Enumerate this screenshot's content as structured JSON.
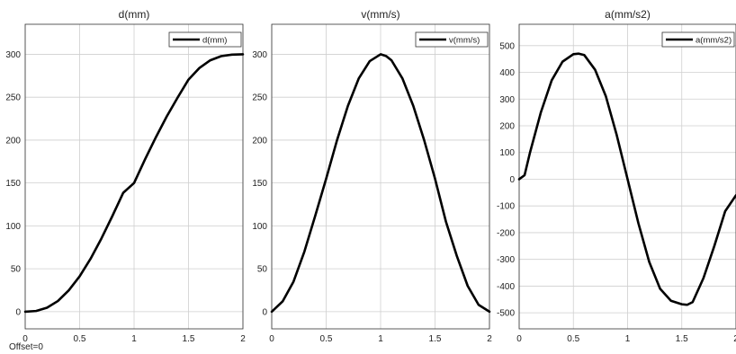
{
  "footer": {
    "offset_text": "Offset=0"
  },
  "colors": {
    "line": "#000000",
    "grid": "#cfcfcf",
    "axis": "#333333",
    "text": "#222222"
  },
  "chart_data": [
    {
      "type": "line",
      "title": "d(mm)",
      "legend": {
        "entry": "d(mm)",
        "placement": "top-right"
      },
      "grid": true,
      "xlim": [
        0,
        2
      ],
      "ylim": [
        -20,
        335
      ],
      "xticks": [
        0,
        0.5,
        1,
        1.5,
        2
      ],
      "xtick_labels": [
        "0",
        "0.5",
        "1",
        "1.5",
        "2"
      ],
      "yticks": [
        0,
        50,
        100,
        150,
        200,
        250,
        300
      ],
      "ytick_labels": [
        "0",
        "50",
        "100",
        "150",
        "200",
        "250",
        "300"
      ],
      "series": [
        {
          "name": "d(mm)",
          "x": [
            0,
            0.1,
            0.2,
            0.3,
            0.4,
            0.5,
            0.6,
            0.7,
            0.8,
            0.9,
            1.0,
            1.1,
            1.2,
            1.3,
            1.4,
            1.5,
            1.6,
            1.7,
            1.8,
            1.9,
            2.0
          ],
          "y": [
            0,
            0.8,
            4.6,
            12.4,
            24.8,
            41.2,
            61.6,
            85.3,
            111.3,
            138.5,
            150,
            177.3,
            203.2,
            227.5,
            249.5,
            270.5,
            284,
            293,
            297.8,
            299.6,
            300
          ]
        }
      ]
    },
    {
      "type": "line",
      "title": "v(mm/s)",
      "legend": {
        "entry": "v(mm/s)",
        "placement": "top-right"
      },
      "grid": true,
      "xlim": [
        0,
        2
      ],
      "ylim": [
        -20,
        335
      ],
      "xticks": [
        0,
        0.5,
        1,
        1.5,
        2
      ],
      "xtick_labels": [
        "0",
        "0.5",
        "1",
        "1.5",
        "2"
      ],
      "yticks": [
        0,
        50,
        100,
        150,
        200,
        250,
        300
      ],
      "ytick_labels": [
        "0",
        "50",
        "100",
        "150",
        "200",
        "250",
        "300"
      ],
      "series": [
        {
          "name": "v(mm/s)",
          "x": [
            0,
            0.1,
            0.2,
            0.3,
            0.4,
            0.5,
            0.6,
            0.7,
            0.8,
            0.9,
            1.0,
            1.05,
            1.1,
            1.2,
            1.3,
            1.4,
            1.5,
            1.6,
            1.7,
            1.8,
            1.9,
            2.0
          ],
          "y": [
            0,
            12,
            35,
            70,
            112,
            155,
            200,
            240,
            272,
            292,
            300,
            298,
            293,
            272,
            240,
            200,
            155,
            105,
            65,
            30,
            8,
            0
          ]
        }
      ]
    },
    {
      "type": "line",
      "title": "a(mm/s2)",
      "legend": {
        "entry": "a(mm/s2)",
        "placement": "top-right"
      },
      "grid": true,
      "xlim": [
        0,
        2
      ],
      "ylim": [
        -560,
        580
      ],
      "xticks": [
        0,
        0.5,
        1,
        1.5,
        2
      ],
      "xtick_labels": [
        "0",
        "0.5",
        "1",
        "1.5",
        "2"
      ],
      "yticks": [
        -500,
        -400,
        -300,
        -200,
        -100,
        0,
        100,
        200,
        300,
        400,
        500
      ],
      "ytick_labels": [
        "-500",
        "-400",
        "-300",
        "-200",
        "-100",
        "0",
        "100",
        "200",
        "300",
        "400",
        "500"
      ],
      "series": [
        {
          "name": "a(mm/s2)",
          "x": [
            0,
            0.05,
            0.1,
            0.2,
            0.3,
            0.4,
            0.5,
            0.55,
            0.6,
            0.7,
            0.8,
            0.9,
            1.0,
            1.1,
            1.2,
            1.3,
            1.4,
            1.5,
            1.55,
            1.6,
            1.7,
            1.8,
            1.9,
            2.0
          ],
          "y": [
            0,
            15,
            100,
            250,
            370,
            440,
            468,
            470,
            465,
            410,
            310,
            165,
            0,
            -165,
            -310,
            -410,
            -455,
            -468,
            -470,
            -460,
            -370,
            -250,
            -120,
            -60
          ]
        }
      ]
    }
  ]
}
